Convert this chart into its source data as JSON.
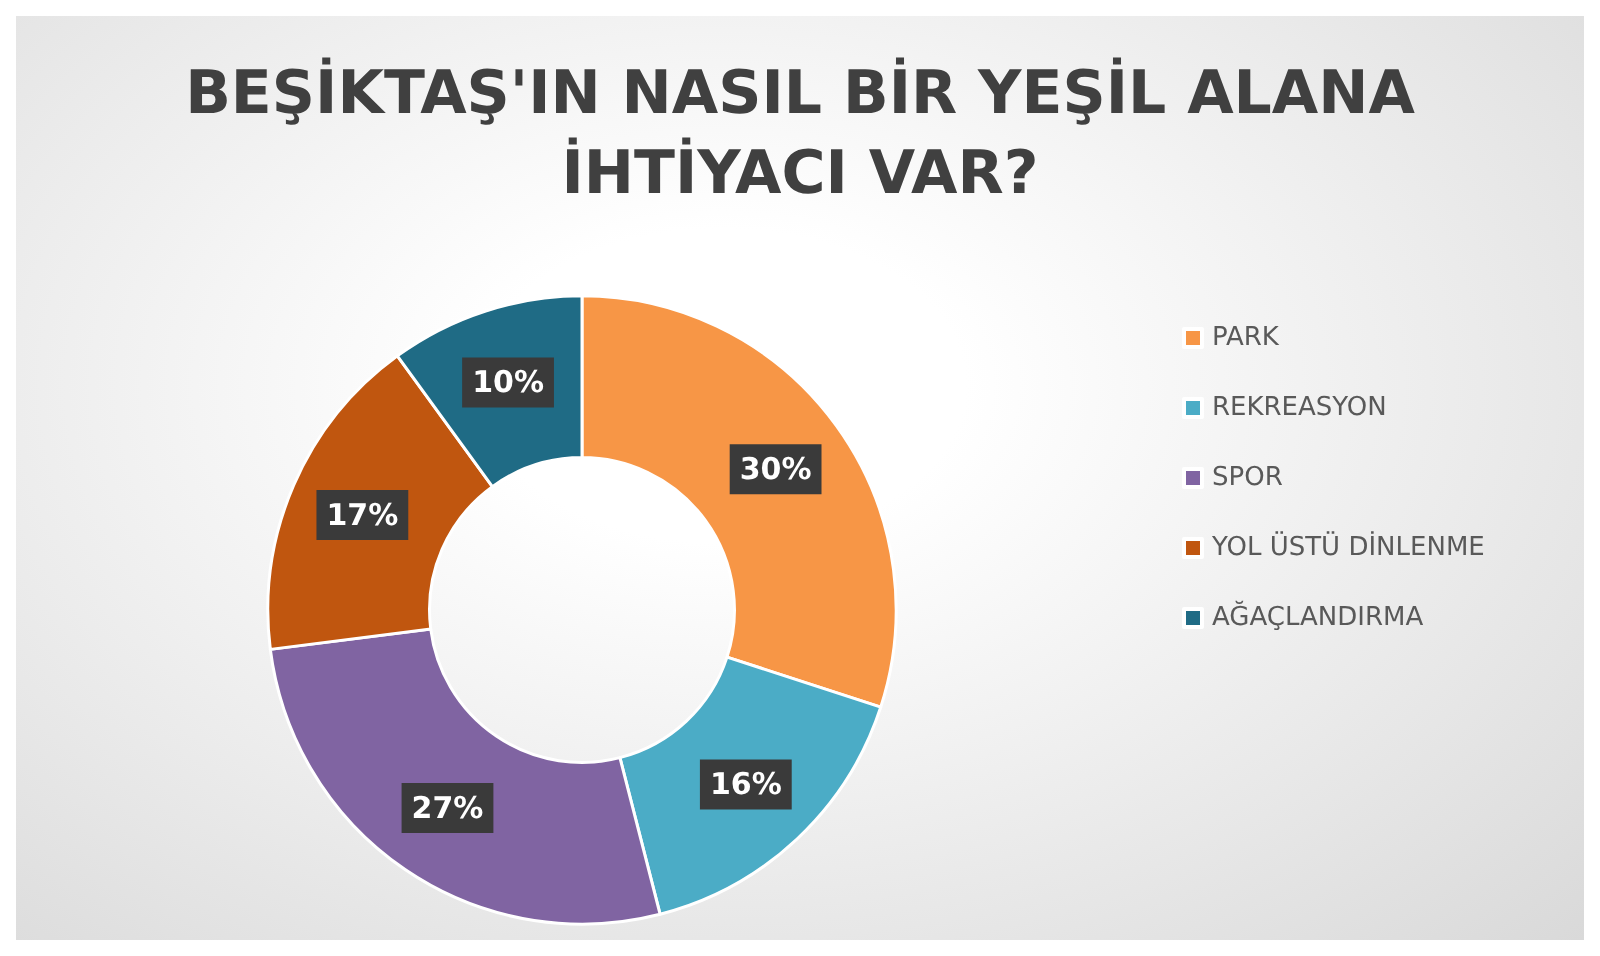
{
  "chart_data": {
    "type": "donut",
    "title": "BEŞİKTAŞ'IN NASIL BİR YEŞİL ALANA\nİHTİYACI VAR?",
    "categories": [
      "PARK",
      "REKREASYON",
      "SPOR",
      "YOL ÜSTÜ DİNLENME",
      "AĞAÇLANDIRMA"
    ],
    "values": [
      30,
      16,
      27,
      17,
      10
    ],
    "value_labels": [
      "30%",
      "16%",
      "27%",
      "17%",
      "10%"
    ],
    "colors": [
      "#f79646",
      "#4bacc6",
      "#8064a2",
      "#c0560f",
      "#1f6b85"
    ],
    "legend": "right"
  }
}
